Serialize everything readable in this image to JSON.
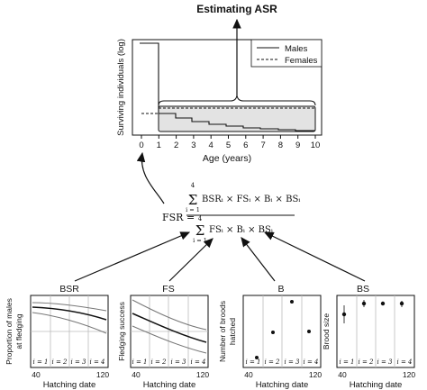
{
  "title": "Estimating ASR",
  "main_plot": {
    "ylabel": "Surviving individuals (log)",
    "xlabel": "Age (years)",
    "x_ticks": [
      "0",
      "1",
      "2",
      "3",
      "4",
      "5",
      "6",
      "7",
      "8",
      "9",
      "10"
    ],
    "legend": [
      {
        "name": "Males",
        "style": "solid"
      },
      {
        "name": "Females",
        "style": "dashed"
      }
    ]
  },
  "formula": {
    "lhs": "FSR =",
    "numerator": "BSRᵢ × FSᵢ × Bᵢ × BSᵢ",
    "denominator": "FSᵢ × Bᵢ × BSᵢ",
    "sum_top": "4",
    "sum_bottom": "i = 1"
  },
  "panels": [
    {
      "title": "BSR",
      "ylabel": "Proportion of males at fledging",
      "xlabel": "Hatching date",
      "x_ticks": [
        "40",
        "120"
      ],
      "i_labels": [
        "i = 1",
        "i = 2",
        "i = 3",
        "i = 4"
      ]
    },
    {
      "title": "FS",
      "ylabel": "Fledging success",
      "xlabel": "Hatching date",
      "x_ticks": [
        "40",
        "120"
      ],
      "i_labels": [
        "i = 1",
        "i = 2",
        "i = 3",
        "i = 4"
      ]
    },
    {
      "title": "B",
      "ylabel": "Number of broods hatched",
      "xlabel": "Hatching date",
      "x_ticks": [
        "40",
        "120"
      ],
      "i_labels": [
        "i = 1",
        "i = 2",
        "i = 3",
        "i = 4"
      ]
    },
    {
      "title": "BS",
      "ylabel": "Brood size",
      "xlabel": "Hatching date",
      "x_ticks": [
        "40",
        "120"
      ],
      "i_labels": [
        "i = 1",
        "i = 2",
        "i = 3",
        "i = 4"
      ]
    }
  ],
  "colors": {
    "shade": "#e3e3e3",
    "line": "#111111",
    "grey_line": "#777777"
  }
}
